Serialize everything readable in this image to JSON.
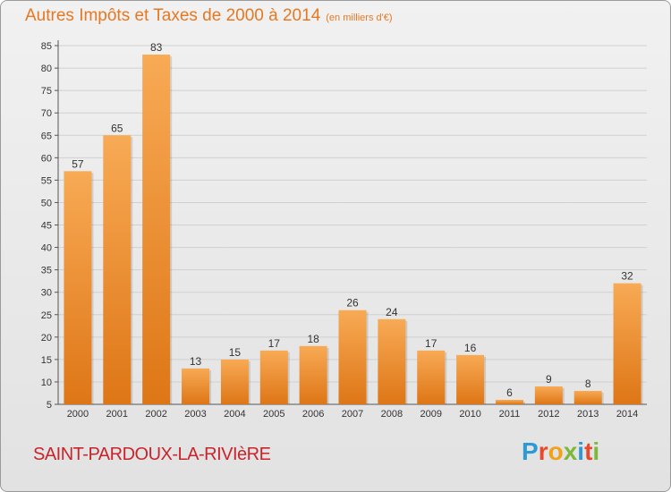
{
  "chart_data": {
    "type": "bar",
    "title": "Autres Impôts et Taxes de 2000 à 2014",
    "unit_note": "(en milliers d'€)",
    "categories": [
      "2000",
      "2001",
      "2002",
      "2003",
      "2004",
      "2005",
      "2006",
      "2007",
      "2008",
      "2009",
      "2010",
      "2011",
      "2012",
      "2013",
      "2014"
    ],
    "values": [
      57,
      65,
      83,
      13,
      15,
      17,
      18,
      26,
      24,
      17,
      16,
      6,
      9,
      8,
      32
    ],
    "ylim": [
      5,
      85
    ],
    "yticks": [
      5,
      10,
      15,
      20,
      25,
      30,
      35,
      40,
      45,
      50,
      55,
      60,
      65,
      70,
      75,
      80,
      85
    ],
    "grid": true,
    "bar_color": "#f0923a",
    "bar_color_light": "#f8aa55",
    "bar_color_dark": "#de7616",
    "grid_color": "#d0d0d0"
  },
  "footer": {
    "commune": "SAINT-PARDOUX-LA-RIVIèRE",
    "brand": "Proxiti"
  },
  "colors": {
    "title": "#e57822",
    "commune": "#c8242b"
  }
}
